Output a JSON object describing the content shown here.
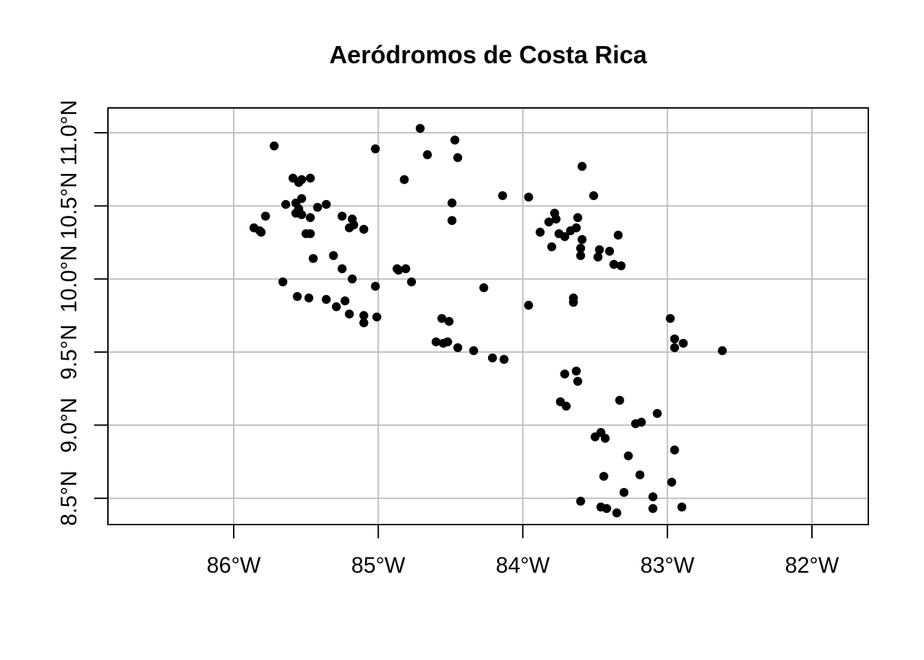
{
  "chart_data": {
    "type": "scatter",
    "title": "Aeródromos de Costa Rica",
    "xlabel": "",
    "ylabel": "",
    "xlim": [
      -86.87,
      -81.61
    ],
    "ylim": [
      8.32,
      11.17
    ],
    "grid": true,
    "x_ticks": [
      {
        "value": -86,
        "label": "86°W"
      },
      {
        "value": -85,
        "label": "85°W"
      },
      {
        "value": -84,
        "label": "84°W"
      },
      {
        "value": -83,
        "label": "83°W"
      },
      {
        "value": -82,
        "label": "82°W"
      }
    ],
    "y_ticks": [
      {
        "value": 8.5,
        "label": "8.5°N"
      },
      {
        "value": 9.0,
        "label": "9.0°N"
      },
      {
        "value": 9.5,
        "label": "9.5°N"
      },
      {
        "value": 10.0,
        "label": "10.0°N"
      },
      {
        "value": 10.5,
        "label": "10.5°N"
      },
      {
        "value": 11.0,
        "label": "11.0°N"
      }
    ],
    "points": [
      [
        -84.71,
        11.03
      ],
      [
        -84.47,
        10.95
      ],
      [
        -85.72,
        10.91
      ],
      [
        -85.02,
        10.89
      ],
      [
        -84.66,
        10.85
      ],
      [
        -84.45,
        10.83
      ],
      [
        -83.59,
        10.77
      ],
      [
        -85.59,
        10.69
      ],
      [
        -85.53,
        10.68
      ],
      [
        -85.47,
        10.69
      ],
      [
        -85.55,
        10.66
      ],
      [
        -84.82,
        10.68
      ],
      [
        -84.14,
        10.57
      ],
      [
        -83.96,
        10.56
      ],
      [
        -83.51,
        10.57
      ],
      [
        -85.64,
        10.51
      ],
      [
        -85.57,
        10.52
      ],
      [
        -85.53,
        10.55
      ],
      [
        -85.36,
        10.51
      ],
      [
        -85.42,
        10.49
      ],
      [
        -84.49,
        10.52
      ],
      [
        -85.55,
        10.48
      ],
      [
        -85.57,
        10.45
      ],
      [
        -85.53,
        10.44
      ],
      [
        -85.78,
        10.43
      ],
      [
        -85.47,
        10.42
      ],
      [
        -85.25,
        10.43
      ],
      [
        -85.18,
        10.41
      ],
      [
        -83.78,
        10.45
      ],
      [
        -83.62,
        10.42
      ],
      [
        -84.49,
        10.4
      ],
      [
        -83.82,
        10.39
      ],
      [
        -83.77,
        10.41
      ],
      [
        -85.86,
        10.35
      ],
      [
        -85.81,
        10.32
      ],
      [
        -85.82,
        10.33
      ],
      [
        -85.2,
        10.35
      ],
      [
        -85.17,
        10.37
      ],
      [
        -85.1,
        10.34
      ],
      [
        -83.88,
        10.32
      ],
      [
        -83.75,
        10.31
      ],
      [
        -83.67,
        10.33
      ],
      [
        -83.63,
        10.35
      ],
      [
        -83.71,
        10.29
      ],
      [
        -85.5,
        10.31
      ],
      [
        -85.47,
        10.31
      ],
      [
        -83.34,
        10.3
      ],
      [
        -83.59,
        10.27
      ],
      [
        -83.8,
        10.22
      ],
      [
        -83.6,
        10.21
      ],
      [
        -83.47,
        10.2
      ],
      [
        -83.4,
        10.19
      ],
      [
        -85.31,
        10.16
      ],
      [
        -83.6,
        10.16
      ],
      [
        -83.48,
        10.15
      ],
      [
        -85.45,
        10.14
      ],
      [
        -83.37,
        10.1
      ],
      [
        -83.32,
        10.09
      ],
      [
        -85.25,
        10.07
      ],
      [
        -84.87,
        10.07
      ],
      [
        -84.81,
        10.07
      ],
      [
        -84.86,
        10.06
      ],
      [
        -85.18,
        10.0
      ],
      [
        -84.77,
        9.98
      ],
      [
        -85.66,
        9.98
      ],
      [
        -85.02,
        9.95
      ],
      [
        -84.27,
        9.94
      ],
      [
        -85.56,
        9.88
      ],
      [
        -85.48,
        9.87
      ],
      [
        -85.36,
        9.86
      ],
      [
        -85.23,
        9.85
      ],
      [
        -85.29,
        9.81
      ],
      [
        -83.96,
        9.82
      ],
      [
        -83.65,
        9.87
      ],
      [
        -83.65,
        9.84
      ],
      [
        -85.2,
        9.76
      ],
      [
        -85.1,
        9.75
      ],
      [
        -85.01,
        9.74
      ],
      [
        -85.1,
        9.7
      ],
      [
        -84.56,
        9.73
      ],
      [
        -84.51,
        9.71
      ],
      [
        -82.98,
        9.73
      ],
      [
        -84.6,
        9.57
      ],
      [
        -84.55,
        9.56
      ],
      [
        -84.52,
        9.57
      ],
      [
        -84.45,
        9.53
      ],
      [
        -84.34,
        9.51
      ],
      [
        -82.95,
        9.59
      ],
      [
        -82.89,
        9.56
      ],
      [
        -82.95,
        9.53
      ],
      [
        -82.62,
        9.51
      ],
      [
        -84.21,
        9.46
      ],
      [
        -84.13,
        9.45
      ],
      [
        -83.63,
        9.37
      ],
      [
        -83.71,
        9.35
      ],
      [
        -83.62,
        9.3
      ],
      [
        -83.33,
        9.17
      ],
      [
        -83.74,
        9.16
      ],
      [
        -83.7,
        9.13
      ],
      [
        -83.07,
        9.08
      ],
      [
        -83.22,
        9.01
      ],
      [
        -83.18,
        9.02
      ],
      [
        -83.46,
        8.95
      ],
      [
        -83.5,
        8.92
      ],
      [
        -83.43,
        8.91
      ],
      [
        -82.95,
        8.83
      ],
      [
        -83.27,
        8.79
      ],
      [
        -83.44,
        8.65
      ],
      [
        -83.19,
        8.66
      ],
      [
        -82.97,
        8.61
      ],
      [
        -83.3,
        8.54
      ],
      [
        -83.1,
        8.51
      ],
      [
        -83.6,
        8.48
      ],
      [
        -83.46,
        8.44
      ],
      [
        -83.42,
        8.43
      ],
      [
        -83.1,
        8.43
      ],
      [
        -82.9,
        8.44
      ],
      [
        -83.35,
        8.4
      ]
    ]
  }
}
